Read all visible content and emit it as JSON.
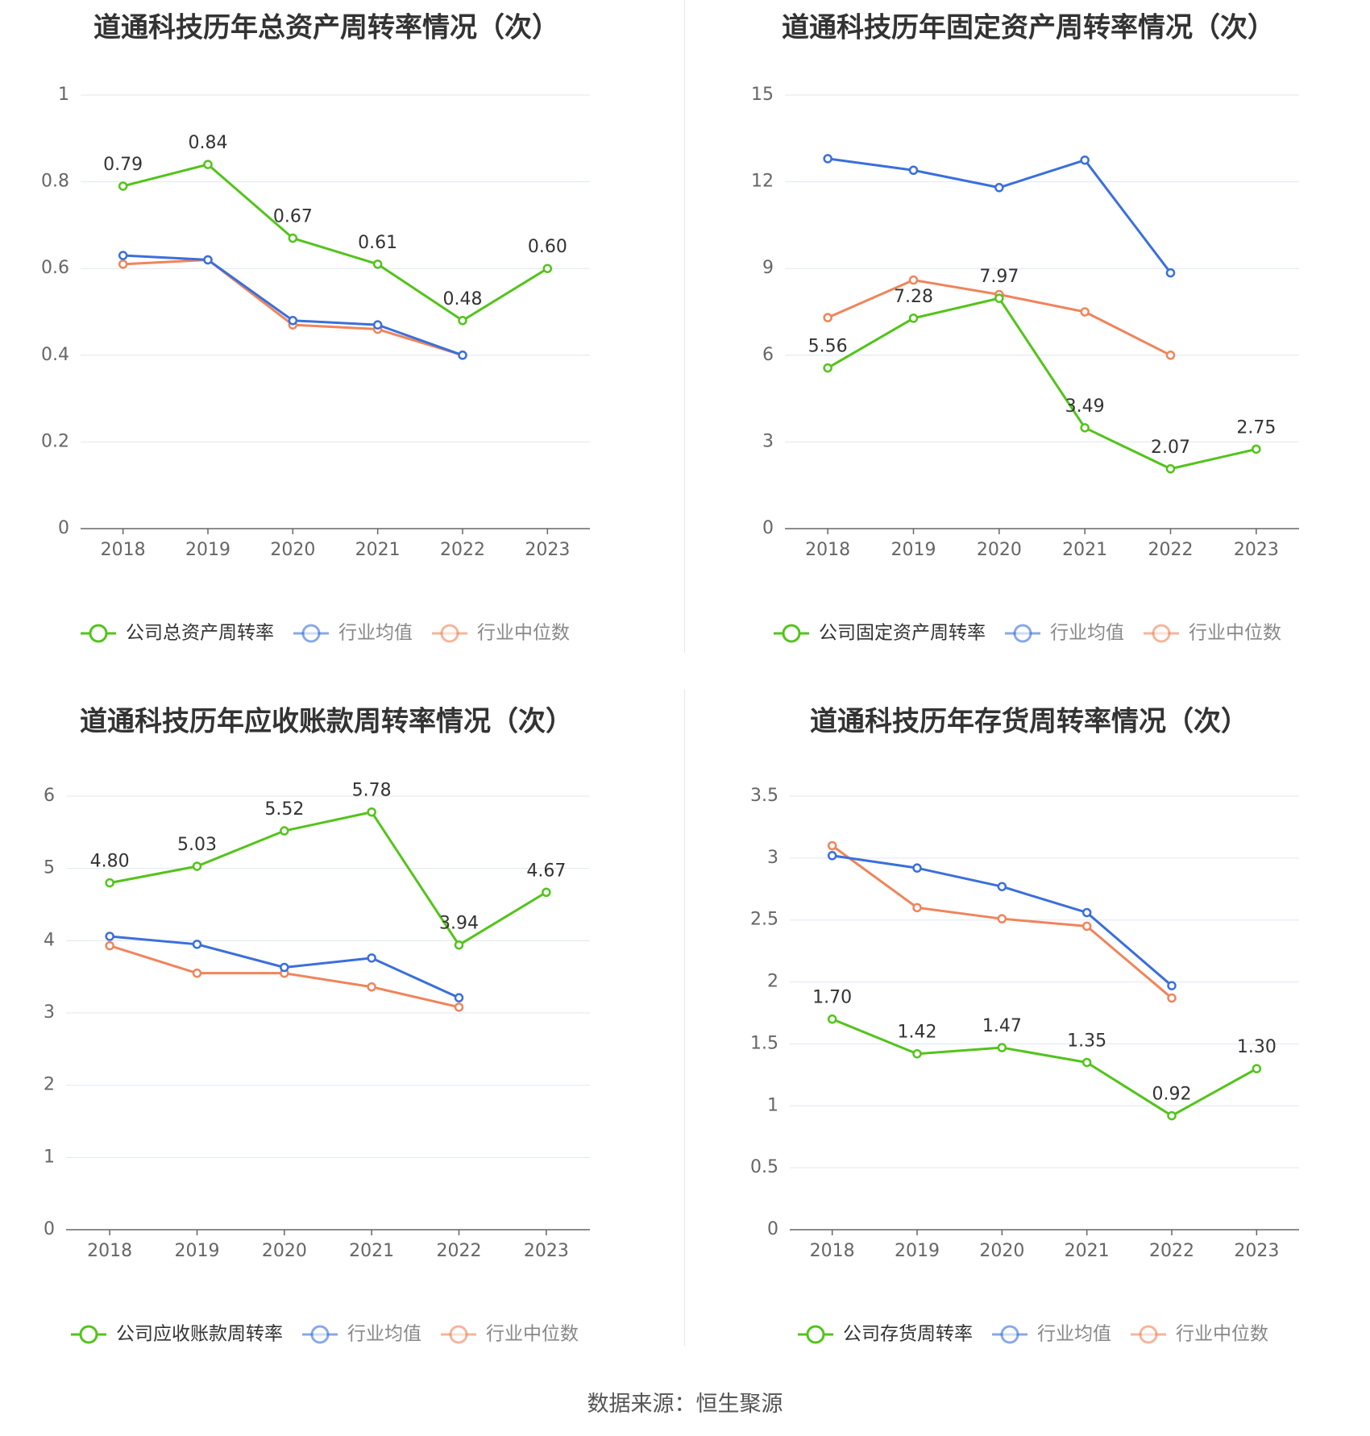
{
  "colors": {
    "company": "#52c41a",
    "avg": "#3a6fdc",
    "median": "#f0845a",
    "grid": "#e0e6f1",
    "axis": "#666666"
  },
  "source": "数据来源：恒生聚源",
  "chart_data": [
    {
      "type": "line",
      "title": "道通科技历年总资产周转率情况（次）",
      "categories": [
        "2018",
        "2019",
        "2020",
        "2021",
        "2022",
        "2023"
      ],
      "ylim": [
        0,
        1
      ],
      "yticks": [
        0,
        0.2,
        0.4,
        0.6,
        0.8,
        1
      ],
      "ytick_labels": [
        "0",
        "0.2",
        "0.4",
        "0.6",
        "0.8",
        "1"
      ],
      "legend_position": "bottom",
      "series": [
        {
          "name": "公司总资产周转率",
          "role": "company",
          "values": [
            0.79,
            0.84,
            0.67,
            0.61,
            0.48,
            0.6
          ],
          "labels": [
            "0.79",
            "0.84",
            "0.67",
            "0.61",
            "0.48",
            "0.60"
          ]
        },
        {
          "name": "行业均值",
          "role": "avg",
          "values": [
            0.63,
            0.62,
            0.48,
            0.47,
            0.4,
            null
          ]
        },
        {
          "name": "行业中位数",
          "role": "median",
          "values": [
            0.61,
            0.62,
            0.47,
            0.46,
            0.4,
            null
          ]
        }
      ]
    },
    {
      "type": "line",
      "title": "道通科技历年固定资产周转率情况（次）",
      "categories": [
        "2018",
        "2019",
        "2020",
        "2021",
        "2022",
        "2023"
      ],
      "ylim": [
        0,
        15
      ],
      "yticks": [
        0,
        3,
        6,
        9,
        12,
        15
      ],
      "ytick_labels": [
        "0",
        "3",
        "6",
        "9",
        "12",
        "15"
      ],
      "legend_position": "bottom",
      "series": [
        {
          "name": "公司固定资产周转率",
          "role": "company",
          "values": [
            5.56,
            7.28,
            7.97,
            3.49,
            2.07,
            2.75
          ],
          "labels": [
            "5.56",
            "7.28",
            "7.97",
            "3.49",
            "2.07",
            "2.75"
          ]
        },
        {
          "name": "行业均值",
          "role": "avg",
          "values": [
            12.8,
            12.4,
            11.8,
            12.75,
            8.85,
            null
          ]
        },
        {
          "name": "行业中位数",
          "role": "median",
          "values": [
            7.3,
            8.6,
            8.1,
            7.5,
            6.0,
            null
          ]
        }
      ]
    },
    {
      "type": "line",
      "title": "道通科技历年应收账款周转率情况（次）",
      "categories": [
        "2018",
        "2019",
        "2020",
        "2021",
        "2022",
        "2023"
      ],
      "ylim": [
        0,
        6
      ],
      "yticks": [
        0,
        1,
        2,
        3,
        4,
        5,
        6
      ],
      "ytick_labels": [
        "0",
        "1",
        "2",
        "3",
        "4",
        "5",
        "6"
      ],
      "legend_position": "bottom",
      "series": [
        {
          "name": "公司应收账款周转率",
          "role": "company",
          "values": [
            4.8,
            5.03,
            5.52,
            5.78,
            3.94,
            4.67
          ],
          "labels": [
            "4.80",
            "5.03",
            "5.52",
            "5.78",
            "3.94",
            "4.67"
          ]
        },
        {
          "name": "行业均值",
          "role": "avg",
          "values": [
            4.06,
            3.95,
            3.63,
            3.76,
            3.21,
            null
          ]
        },
        {
          "name": "行业中位数",
          "role": "median",
          "values": [
            3.93,
            3.55,
            3.55,
            3.36,
            3.08,
            null
          ]
        }
      ]
    },
    {
      "type": "line",
      "title": "道通科技历年存货周转率情况（次）",
      "categories": [
        "2018",
        "2019",
        "2020",
        "2021",
        "2022",
        "2023"
      ],
      "ylim": [
        0,
        3.5
      ],
      "yticks": [
        0,
        0.5,
        1,
        1.5,
        2,
        2.5,
        3,
        3.5
      ],
      "ytick_labels": [
        "0",
        "0.5",
        "1",
        "1.5",
        "2",
        "2.5",
        "3",
        "3.5"
      ],
      "legend_position": "bottom",
      "series": [
        {
          "name": "公司存货周转率",
          "role": "company",
          "values": [
            1.7,
            1.42,
            1.47,
            1.35,
            0.92,
            1.3
          ],
          "labels": [
            "1.70",
            "1.42",
            "1.47",
            "1.35",
            "0.92",
            "1.30"
          ]
        },
        {
          "name": "行业均值",
          "role": "avg",
          "values": [
            3.02,
            2.92,
            2.77,
            2.56,
            1.97,
            null
          ]
        },
        {
          "name": "行业中位数",
          "role": "median",
          "values": [
            3.1,
            2.6,
            2.51,
            2.45,
            1.87,
            null
          ]
        }
      ]
    }
  ]
}
